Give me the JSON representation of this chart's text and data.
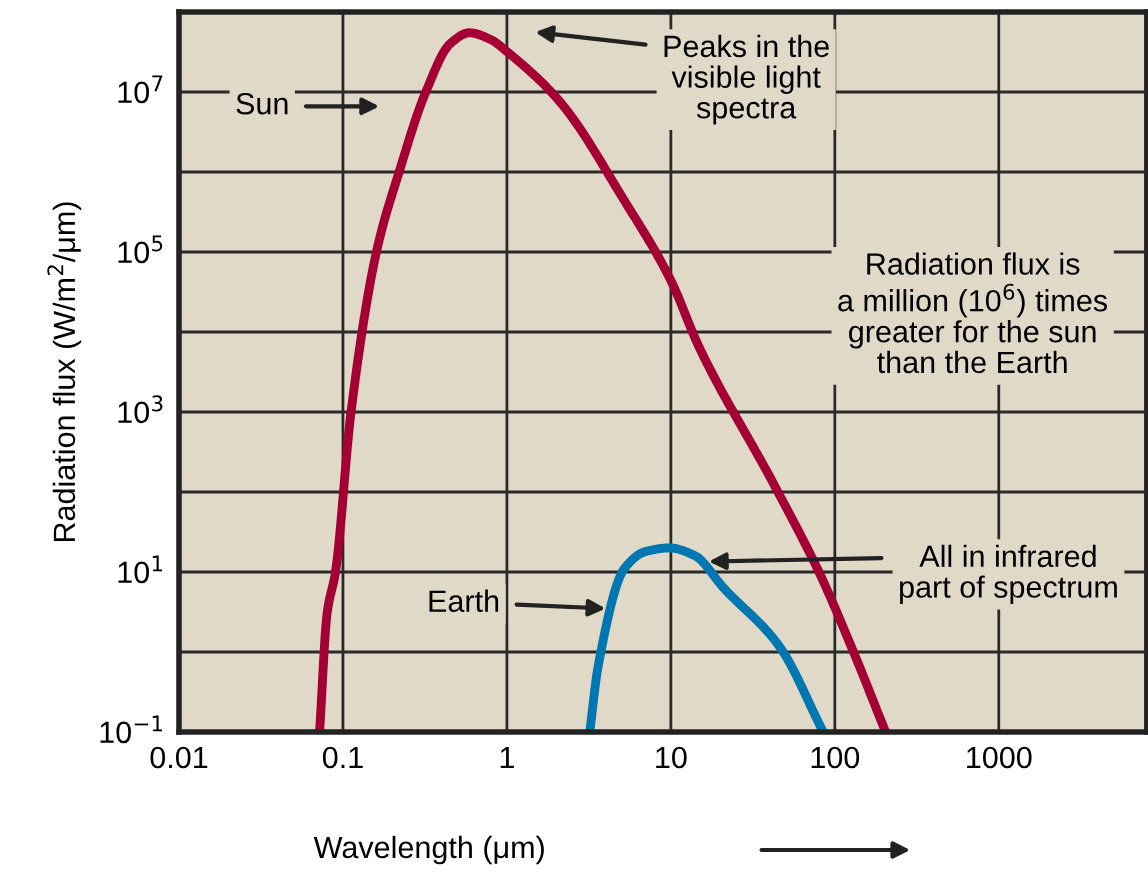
{
  "chart_data": {
    "type": "line",
    "xlabel": "Wavelength (μm)",
    "ylabel": "Radiation flux (W/m$^{2}$/μm)",
    "log": "xy",
    "grid": true,
    "xlim": [
      0.01,
      8000
    ],
    "xticks": [
      0.01,
      0.1,
      1,
      10,
      100,
      1000
    ],
    "ylim": [
      0.1,
      100000000
    ],
    "yticks": [
      {
        "value": 0.1,
        "label": "10$^{−1}$"
      },
      {
        "value": 1,
        "label": null
      },
      {
        "value": 10,
        "label": "10$^{1}$"
      },
      {
        "value": 100,
        "label": null
      },
      {
        "value": 1000,
        "label": "10$^{3}$"
      },
      {
        "value": 10000,
        "label": null
      },
      {
        "value": 100000,
        "label": "10$^{5}$"
      },
      {
        "value": 1000000,
        "label": null
      },
      {
        "value": 10000000,
        "label": "10$^{7}$"
      }
    ],
    "series": [
      {
        "color": "#a50034",
        "x": [
          0.072,
          0.08,
          0.09,
          0.112,
          0.16,
          0.22,
          0.32,
          0.45,
          0.59,
          0.8,
          1,
          2.1,
          5.2,
          10,
          14.8,
          42,
          80,
          130,
          204
        ],
        "values": [
          0.1,
          3,
          10,
          1000,
          100000,
          1000000,
          10000000,
          40000000,
          55000000,
          45000000,
          32000000,
          7600000,
          440000,
          44000,
          6600,
          130,
          10,
          1,
          0.1
        ]
      },
      {
        "color": "#0077b0",
        "x": [
          3.2,
          3.6,
          5.2,
          7,
          9.8,
          14,
          21,
          46,
          85
        ],
        "values": [
          0.1,
          0.66,
          11,
          18,
          20,
          16,
          6.3,
          1.17,
          0.1
        ]
      }
    ],
    "annotations": [
      "Sun",
      "Peaks in the\nvisible light\nspectra",
      "Radiation flux is\na million (10$^{6}$) times\ngreater for the sun\nthan the Earth",
      {
        "text": "Earth",
        "x": 4,
        "y": 3.5
      },
      {
        "text": "All in infrared\npart of spectrum",
        "x": 17,
        "y": 13.5
      }
    ]
  }
}
